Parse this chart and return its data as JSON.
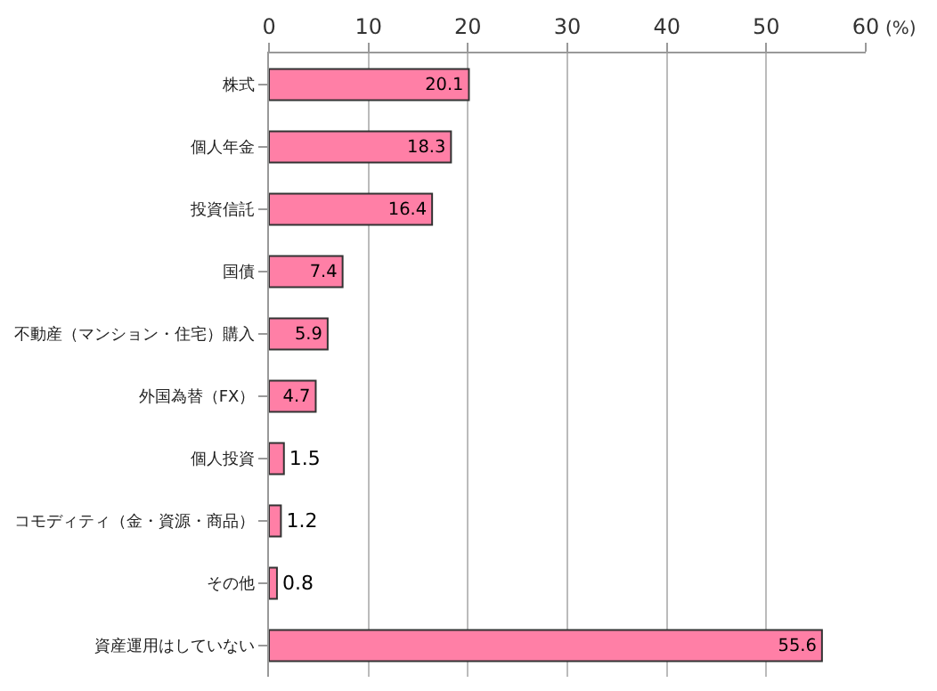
{
  "chart_data": {
    "type": "bar",
    "orientation": "horizontal",
    "xlabel": "(%)",
    "categories": [
      "株式",
      "個人年金",
      "投資信託",
      "国債",
      "不動産（マンション・住宅）購入",
      "外国為替（FX）",
      "個人投資",
      "コモディティ（金・資源・商品）",
      "その他",
      "資産運用はしていない"
    ],
    "values": [
      20.1,
      18.3,
      16.4,
      7.4,
      5.9,
      4.7,
      1.5,
      1.2,
      0.8,
      55.6
    ],
    "color": "#ff7fa6",
    "xlim": [
      0,
      60
    ],
    "xticks": [
      0,
      10,
      20,
      30,
      40,
      50,
      60
    ],
    "grid": "x",
    "data_labels": true,
    "legend": false
  }
}
